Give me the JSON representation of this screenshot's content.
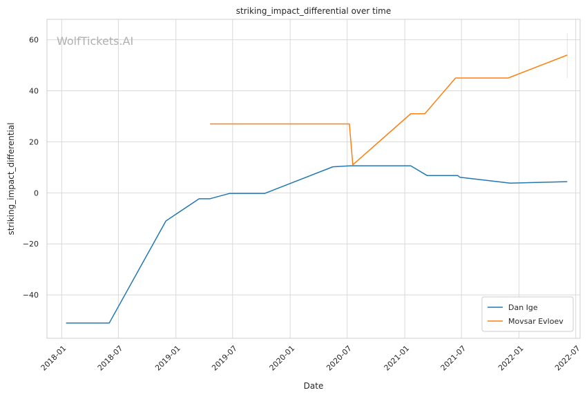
{
  "chart_data": {
    "type": "line",
    "title": "striking_impact_differential over time",
    "xlabel": "Date",
    "ylabel": "striking_impact_differential",
    "watermark": "WolfTickets.AI",
    "x_ticks": [
      "2018-01",
      "2018-07",
      "2019-01",
      "2019-07",
      "2020-01",
      "2020-07",
      "2021-01",
      "2021-07",
      "2022-01",
      "2022-07"
    ],
    "y_ticks": [
      -40,
      -20,
      0,
      20,
      40,
      60
    ],
    "xlim": [
      "2017-11-15",
      "2022-07-15"
    ],
    "ylim": [
      -57,
      68
    ],
    "grid": true,
    "legend_position": "lower-right",
    "series": [
      {
        "name": "Dan Ige",
        "color": "#1f77b4",
        "points": [
          {
            "x": "2018-01-15",
            "y": -51
          },
          {
            "x": "2018-06-02",
            "y": -51
          },
          {
            "x": "2018-11-30",
            "y": -11
          },
          {
            "x": "2019-03-16",
            "y": -2.3
          },
          {
            "x": "2019-04-20",
            "y": -2.3
          },
          {
            "x": "2019-06-22",
            "y": -0.2
          },
          {
            "x": "2019-10-12",
            "y": -0.2
          },
          {
            "x": "2020-05-16",
            "y": 10.2
          },
          {
            "x": "2020-07-11",
            "y": 10.6
          },
          {
            "x": "2021-01-20",
            "y": 10.6
          },
          {
            "x": "2021-03-13",
            "y": 6.8
          },
          {
            "x": "2021-06-19",
            "y": 6.8
          },
          {
            "x": "2021-06-26",
            "y": 6.1
          },
          {
            "x": "2021-12-04",
            "y": 3.8
          },
          {
            "x": "2022-06-04",
            "y": 4.4
          }
        ]
      },
      {
        "name": "Movsar Evloev",
        "color": "#ff7f0e",
        "points": [
          {
            "x": "2019-04-20",
            "y": 27
          },
          {
            "x": "2020-07-08",
            "y": 27
          },
          {
            "x": "2020-07-19",
            "y": 11
          },
          {
            "x": "2021-01-20",
            "y": 31
          },
          {
            "x": "2021-03-06",
            "y": 31
          },
          {
            "x": "2021-06-12",
            "y": 45
          },
          {
            "x": "2021-11-27",
            "y": 45
          },
          {
            "x": "2022-06-04",
            "y": 54
          }
        ],
        "error_band": {
          "x": "2022-06-04",
          "low": 45,
          "high": 62.5
        }
      }
    ]
  }
}
